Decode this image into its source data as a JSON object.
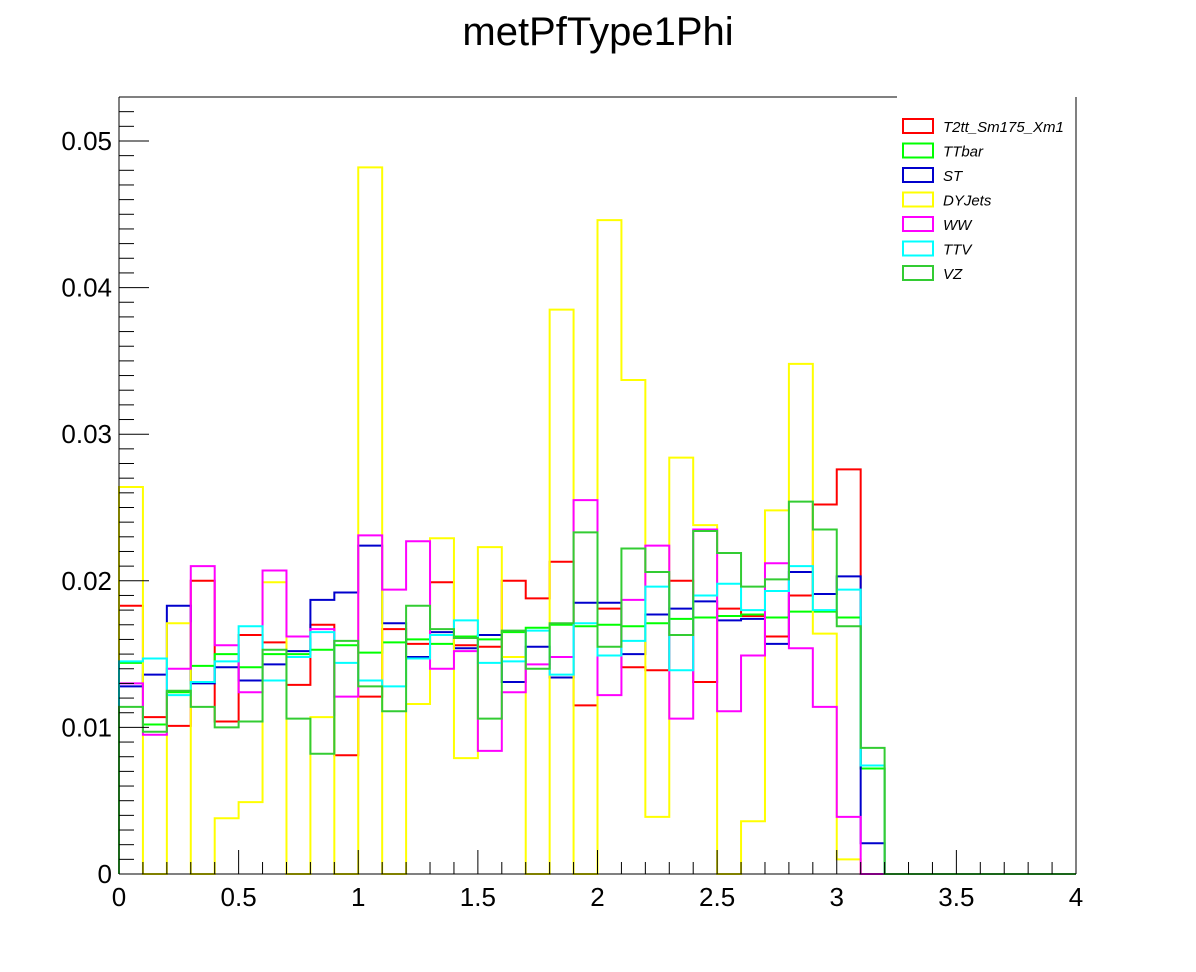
{
  "chart_data": {
    "type": "histogram",
    "title": "metPfType1Phi",
    "xlabel": "",
    "ylabel": "",
    "xlim": [
      0,
      4
    ],
    "ylim": [
      0,
      0.053
    ],
    "bin_width": 0.1,
    "x_ticks": [
      {
        "value": 0,
        "label": "0"
      },
      {
        "value": 0.5,
        "label": "0.5"
      },
      {
        "value": 1,
        "label": "1"
      },
      {
        "value": 1.5,
        "label": "1.5"
      },
      {
        "value": 2,
        "label": "2"
      },
      {
        "value": 2.5,
        "label": "2.5"
      },
      {
        "value": 3,
        "label": "3"
      },
      {
        "value": 3.5,
        "label": "3.5"
      },
      {
        "value": 4,
        "label": "4"
      }
    ],
    "y_ticks": [
      {
        "value": 0,
        "label": "0"
      },
      {
        "value": 0.01,
        "label": "0.01"
      },
      {
        "value": 0.02,
        "label": "0.02"
      },
      {
        "value": 0.03,
        "label": "0.03"
      },
      {
        "value": 0.04,
        "label": "0.04"
      },
      {
        "value": 0.05,
        "label": "0.05"
      }
    ],
    "legend_position": "top-right",
    "grid": false,
    "series": [
      {
        "name": "T2tt_Sm175_Xm1",
        "color": "#ff0000",
        "values": [
          0.0183,
          0.0107,
          0.0101,
          0.02,
          0.0104,
          0.0163,
          0.0158,
          0.0129,
          0.017,
          0.0081,
          0.0121,
          0.0167,
          0.0157,
          0.0199,
          0.0156,
          0.0155,
          0.02,
          0.0188,
          0.0213,
          0.0115,
          0.0181,
          0.0141,
          0.0139,
          0.02,
          0.0131,
          0.0181,
          0.0176,
          0.0162,
          0.019,
          0.0252,
          0.0276,
          0.0072,
          0,
          0,
          0,
          0,
          0,
          0,
          0,
          0
        ]
      },
      {
        "name": "TTbar",
        "color": "#00ff00",
        "values": [
          0.0144,
          0.0102,
          0.0124,
          0.0142,
          0.015,
          0.0141,
          0.015,
          0.015,
          0.0153,
          0.0156,
          0.0151,
          0.0158,
          0.016,
          0.0157,
          0.0162,
          0.016,
          0.0165,
          0.0168,
          0.017,
          0.0169,
          0.017,
          0.0169,
          0.0171,
          0.0174,
          0.0175,
          0.0176,
          0.0177,
          0.0175,
          0.0179,
          0.0179,
          0.0175,
          0.0072,
          0,
          0,
          0,
          0,
          0,
          0,
          0,
          0
        ]
      },
      {
        "name": "ST",
        "color": "#0000cc",
        "values": [
          0.0128,
          0.0136,
          0.0183,
          0.013,
          0.0141,
          0.0132,
          0.0143,
          0.0152,
          0.0187,
          0.0192,
          0.0224,
          0.0171,
          0.0148,
          0.0165,
          0.0154,
          0.0163,
          0.0131,
          0.0155,
          0.0134,
          0.0185,
          0.0185,
          0.015,
          0.0177,
          0.0181,
          0.0186,
          0.0173,
          0.0174,
          0.0157,
          0.0206,
          0.0191,
          0.0203,
          0.0021,
          0,
          0,
          0,
          0,
          0,
          0,
          0,
          0
        ]
      },
      {
        "name": "DYJets",
        "color": "#ffff00",
        "values": [
          0.0264,
          0.0,
          0.0171,
          0.0,
          0.0038,
          0.0049,
          0.0199,
          0.0,
          0.0107,
          0.0,
          0.0482,
          0.0,
          0.0116,
          0.0229,
          0.0079,
          0.0223,
          0.0148,
          0.0,
          0.0385,
          0.0,
          0.0446,
          0.0337,
          0.0039,
          0.0284,
          0.0238,
          0.0,
          0.0036,
          0.0248,
          0.0348,
          0.0164,
          0.001,
          0.0,
          0,
          0,
          0,
          0,
          0,
          0,
          0,
          0
        ]
      },
      {
        "name": "WW",
        "color": "#ff00ff",
        "values": [
          0.013,
          0.0095,
          0.014,
          0.021,
          0.0156,
          0.0124,
          0.0207,
          0.0162,
          0.0167,
          0.0121,
          0.0231,
          0.0194,
          0.0227,
          0.014,
          0.0152,
          0.0084,
          0.0124,
          0.0143,
          0.0148,
          0.0255,
          0.0122,
          0.0187,
          0.0224,
          0.0106,
          0.0235,
          0.0111,
          0.0149,
          0.0212,
          0.0154,
          0.0114,
          0.0039,
          0.0,
          0,
          0,
          0,
          0,
          0,
          0,
          0,
          0
        ]
      },
      {
        "name": "TTV",
        "color": "#00ffff",
        "values": [
          0.0145,
          0.0147,
          0.0122,
          0.0131,
          0.0145,
          0.0169,
          0.0132,
          0.0148,
          0.0165,
          0.0144,
          0.0132,
          0.0128,
          0.0147,
          0.0163,
          0.0173,
          0.0144,
          0.0145,
          0.0166,
          0.0136,
          0.0171,
          0.0149,
          0.0159,
          0.0196,
          0.0139,
          0.019,
          0.0198,
          0.018,
          0.0193,
          0.021,
          0.018,
          0.0194,
          0.0074,
          0,
          0,
          0,
          0,
          0,
          0,
          0,
          0
        ]
      },
      {
        "name": "VZ",
        "color": "#33cc33",
        "values": [
          0.0114,
          0.0097,
          0.0125,
          0.0114,
          0.01,
          0.0104,
          0.0153,
          0.0106,
          0.0082,
          0.0159,
          0.0128,
          0.0111,
          0.0183,
          0.0167,
          0.0161,
          0.0106,
          0.0166,
          0.014,
          0.0171,
          0.0233,
          0.0155,
          0.0222,
          0.0206,
          0.0163,
          0.0234,
          0.0219,
          0.0196,
          0.0201,
          0.0254,
          0.0235,
          0.0169,
          0.0086,
          0,
          0,
          0,
          0,
          0,
          0,
          0,
          0
        ]
      }
    ]
  }
}
